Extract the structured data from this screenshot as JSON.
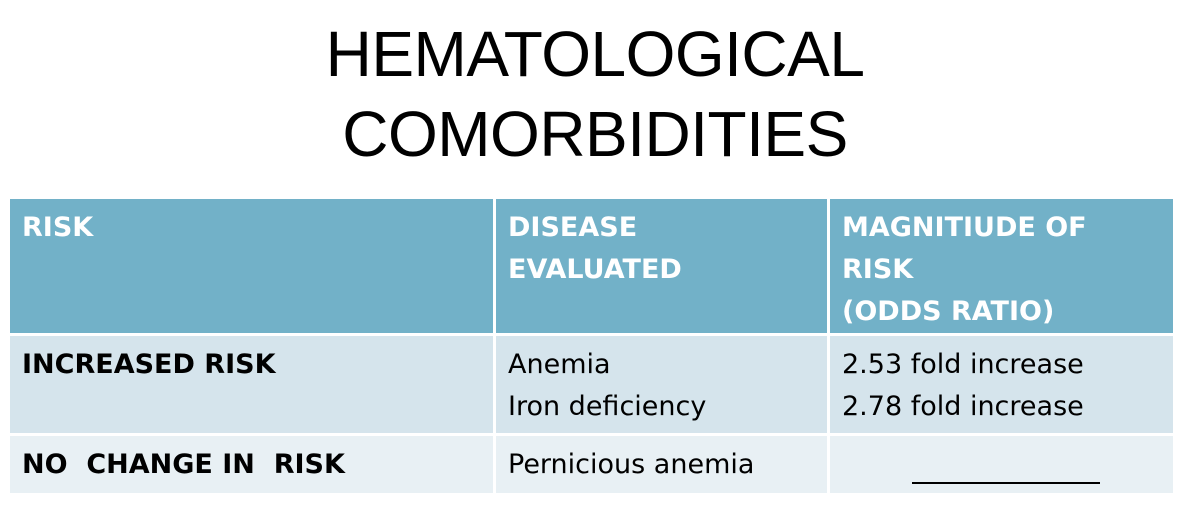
{
  "slide": {
    "title_lines": [
      "HEMATOLOGICAL",
      "COMORBIDITIES"
    ]
  },
  "table": {
    "headers": [
      [
        "RISK"
      ],
      [
        "DISEASE",
        "EVALUATED"
      ],
      [
        "MAGNITIUDE OF",
        "RISK",
        "(ODDS RATIO)"
      ]
    ],
    "rows": [
      {
        "risk": "INCREASED RISK",
        "diseases": [
          "Anemia",
          "Iron deficiency"
        ],
        "magnitudes": [
          "2.53 fold increase",
          "2.78 fold increase"
        ]
      },
      {
        "risk": "NO  CHANGE IN  RISK",
        "diseases": [
          "Pernicious anemia"
        ],
        "magnitudes": []
      }
    ]
  },
  "colors": {
    "header_bg": "#72b1c8",
    "row_bg": "#d5e4ec",
    "header_text": "#ffffff"
  }
}
